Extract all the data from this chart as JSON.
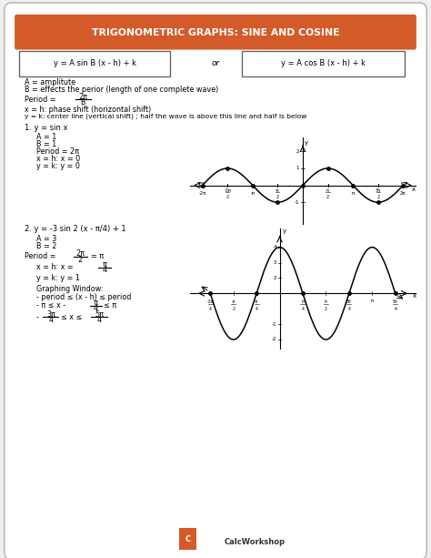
{
  "title": "TRIGONOMETRIC GRAPHS: SINE AND COSINE",
  "title_bg": "#d45a2a",
  "title_color": "#ffffff",
  "bg_color": "#f0f0f0",
  "border_color": "#bbbbbb",
  "box1_text": "y = A sin B (x - h) + k",
  "box2_text": "y = A cos B (x - h) + k",
  "or_text": "or",
  "line1": "A = amplitute",
  "line2": "B = effects the perior (length of one complete wave)",
  "period_label": "Period = ",
  "period_frac_num": "2π",
  "period_frac_den": "B",
  "line3": "x = h: phase shift (horizontal shift)",
  "line4": "y = k: center line (vertical shift) ; half the wave is above this line and half is below",
  "example1_label": "1. y = sin x",
  "ex1_A": "A = 1",
  "ex1_B": "B = 1",
  "ex1_period": "Period = 2π",
  "ex1_x": "x = h: x = 0",
  "ex1_y": "y = k: y = 0",
  "example2_label": "2. y = -3 sin 2 (x - π/4) + 1",
  "ex2_A": "A = 3",
  "ex2_B": "B = 2",
  "ex2_period_label": "Period = ",
  "ex2_period_frac_num": "2π",
  "ex2_period_frac_den": "2",
  "ex2_period_val": "= π",
  "ex2_x_label": "x = h: x = ",
  "ex2_x_frac_num": "π",
  "ex2_x_frac_den": "4",
  "ex2_y": "y = k: y = 1",
  "graphing_window": "Graphing Window:",
  "gw_line1": "- period ≤ (x - h) ≤ period",
  "gw_line2_pre": "- π ≤ x - ",
  "gw_line2_frac_num": "π",
  "gw_line2_frac_den": "4",
  "gw_line2_post": "≤ π",
  "gw_line3_pre": "- ",
  "gw_line3_frac1_num": "3π",
  "gw_line3_frac1_den": "4",
  "gw_line3_mid": " ≤ x ≤ ",
  "gw_line3_frac2_num": "5π",
  "gw_line3_frac2_den": "4",
  "footer_text": "CalcWorkshop"
}
